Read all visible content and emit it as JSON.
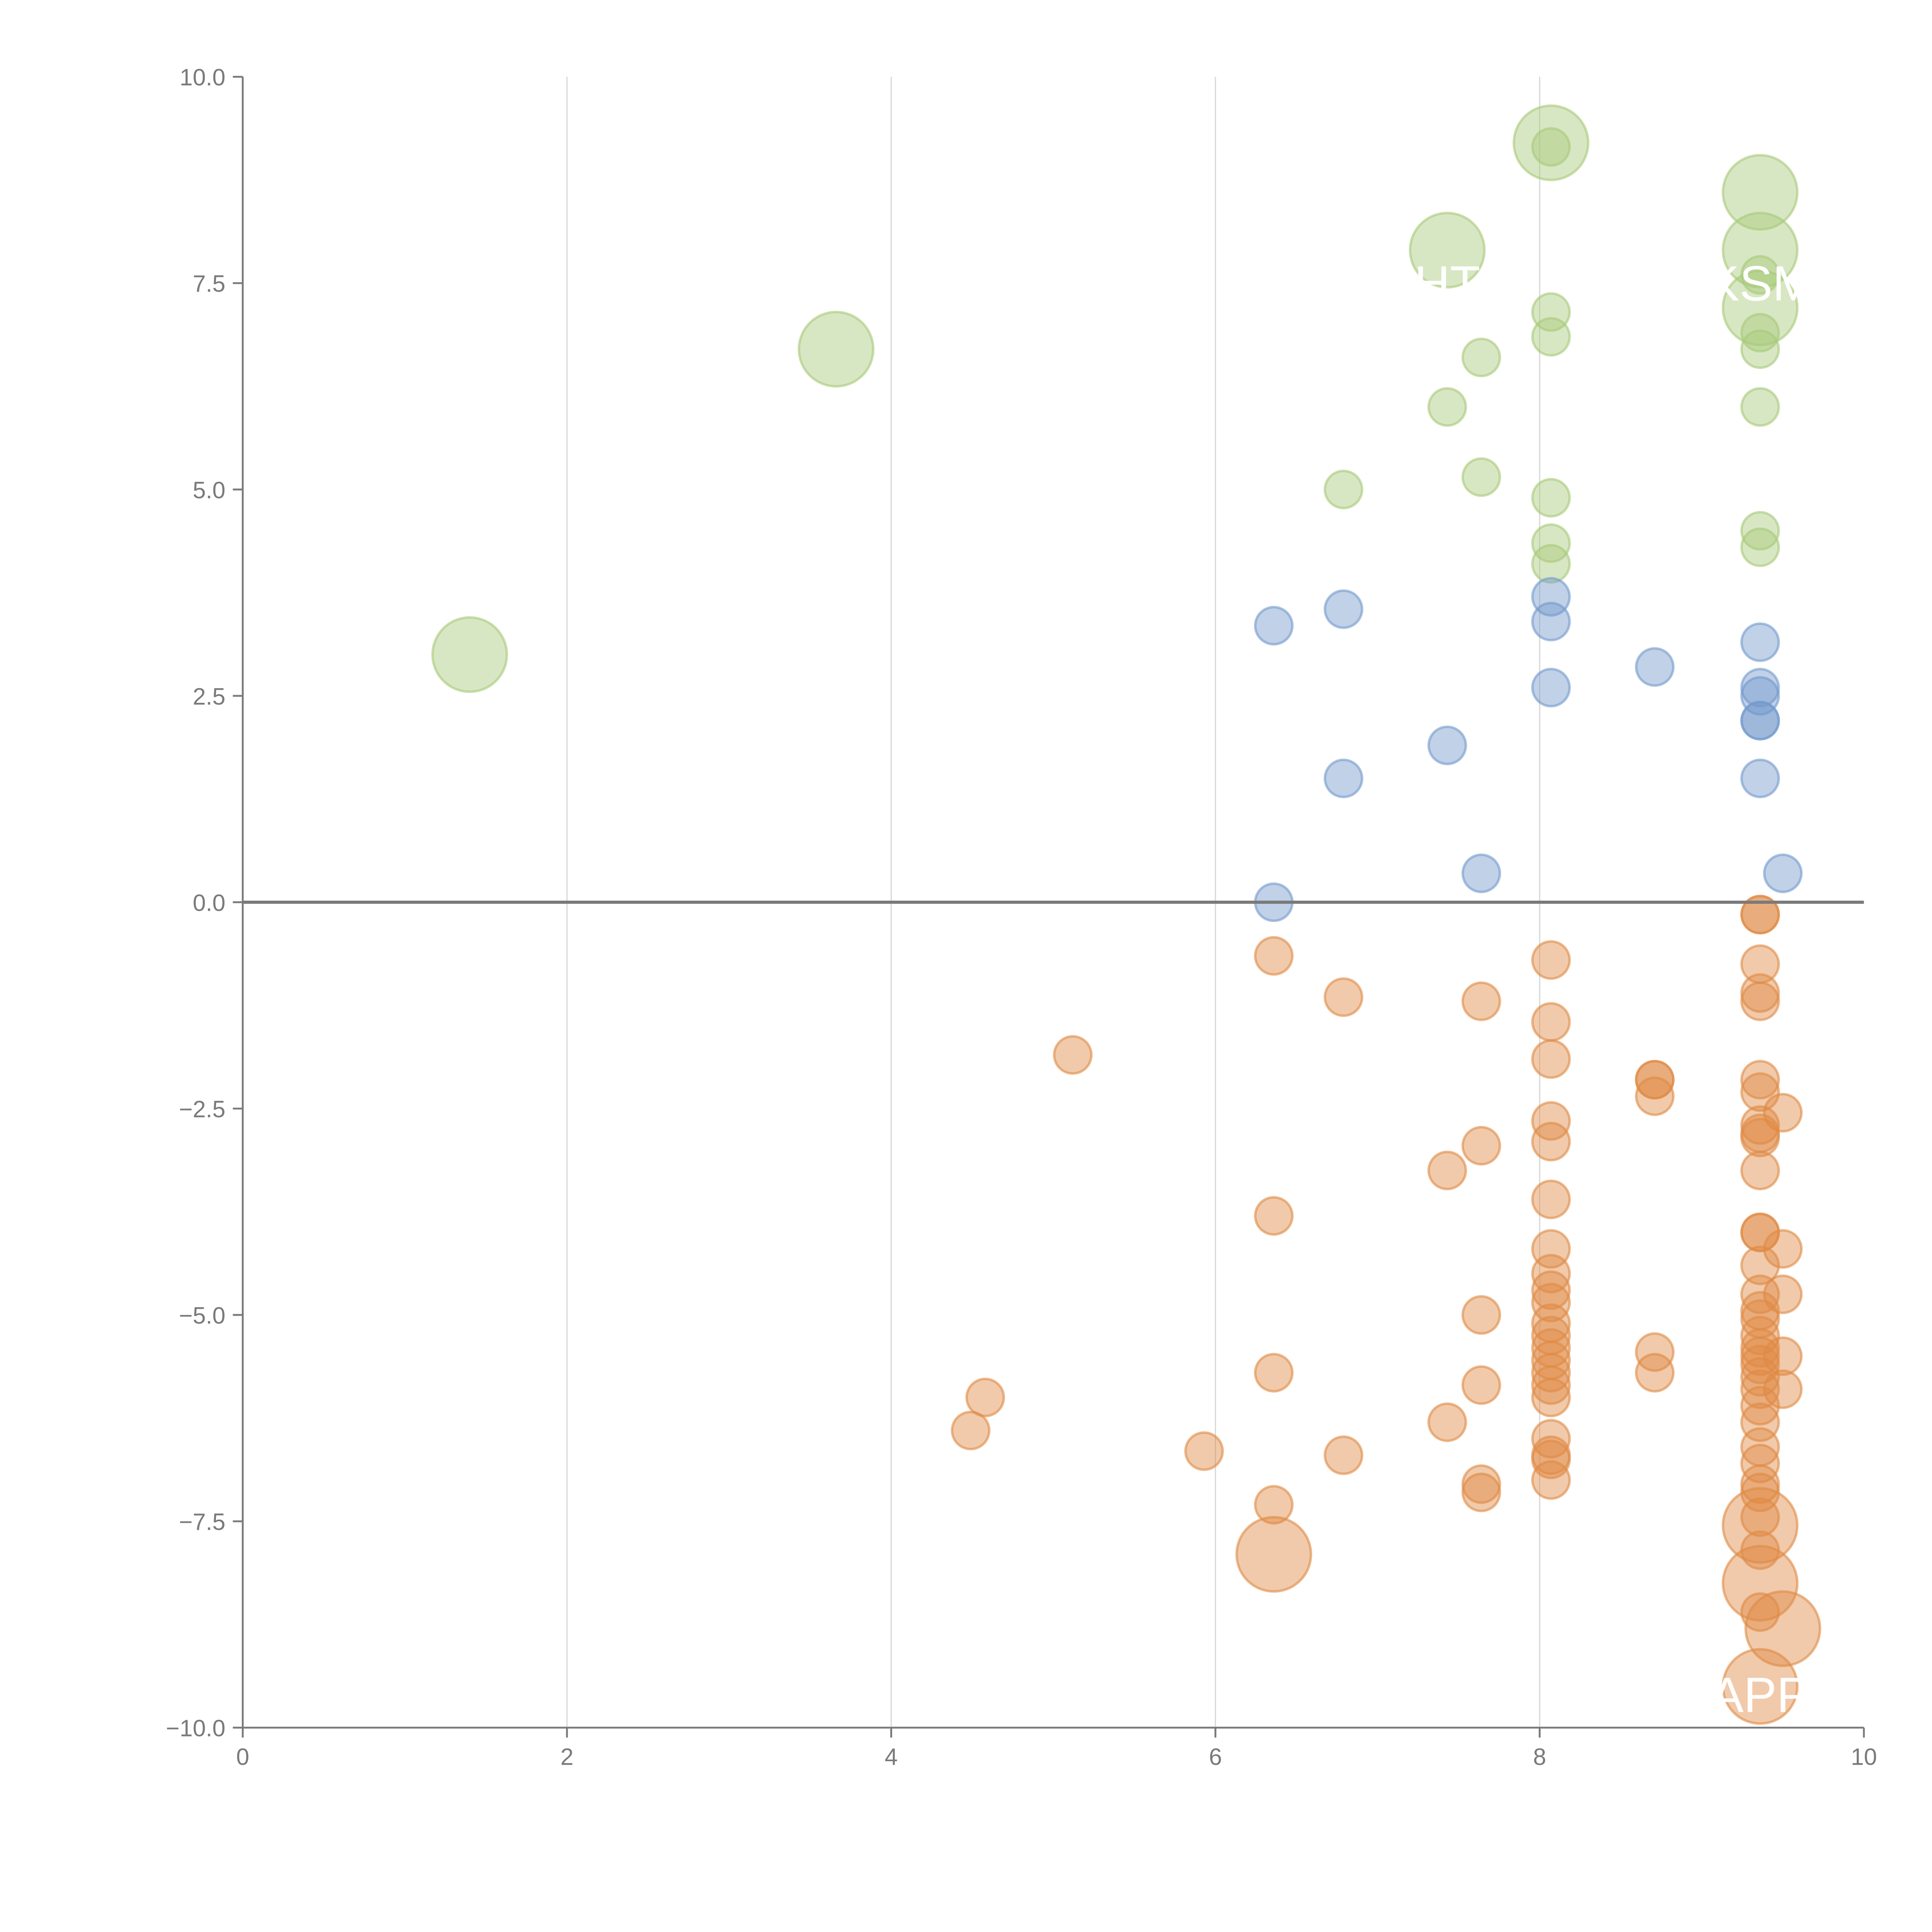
{
  "chart_data": {
    "type": "scatter",
    "title": "",
    "xlabel": "",
    "ylabel": "",
    "xlim": [
      0,
      10
    ],
    "ylim": [
      -10,
      10
    ],
    "grid": "vertical",
    "x_ticks": [
      "0",
      "2",
      "4",
      "6",
      "8",
      "10"
    ],
    "x_tick_values": [
      0,
      2,
      4,
      6,
      8,
      10
    ],
    "y_ticks": [
      "10.0",
      "7.5",
      "5.0",
      "2.5",
      "0.0",
      "−2.5",
      "−5.0",
      "−7.5",
      "−10.0"
    ],
    "y_tick_values": [
      10,
      7.5,
      5,
      2.5,
      0,
      -2.5,
      -5,
      -7.5,
      -10
    ],
    "colors": {
      "green": "#a9c97a",
      "blue": "#7399cc",
      "orange": "#e08a45",
      "axis": "#7a7a7a",
      "grid": "#d9d9d9"
    },
    "annotations": [
      {
        "text": "HT",
        "x": 7.43,
        "y": 7.5
      },
      {
        "text": "KSM",
        "x": 9.36,
        "y": 7.5
      },
      {
        "text": "APP",
        "x": 9.36,
        "y": -9.6
      }
    ],
    "series": [
      {
        "name": "green",
        "color": "#a9c97a",
        "points": [
          [
            1.4,
            3.0,
            2
          ],
          [
            3.66,
            6.7,
            2
          ],
          [
            7.43,
            7.9,
            2
          ],
          [
            8.07,
            9.2,
            2
          ],
          [
            8.07,
            9.15,
            1
          ],
          [
            9.36,
            8.6,
            2
          ],
          [
            9.36,
            7.9,
            2
          ],
          [
            9.36,
            7.2,
            2
          ],
          [
            9.36,
            7.6,
            1
          ],
          [
            9.36,
            6.9,
            1
          ],
          [
            9.36,
            6.7,
            1
          ],
          [
            9.36,
            6.0,
            1
          ],
          [
            8.07,
            7.15,
            1
          ],
          [
            8.07,
            6.85,
            1
          ],
          [
            7.64,
            6.6,
            1
          ],
          [
            7.43,
            6.0,
            1
          ],
          [
            6.79,
            5.0,
            1
          ],
          [
            7.64,
            5.15,
            1
          ],
          [
            8.07,
            4.9,
            1
          ],
          [
            8.07,
            4.35,
            1
          ],
          [
            8.07,
            4.1,
            1
          ],
          [
            9.36,
            4.5,
            1
          ],
          [
            9.36,
            4.3,
            1
          ]
        ]
      },
      {
        "name": "blue",
        "color": "#7399cc",
        "points": [
          [
            6.36,
            3.35,
            1
          ],
          [
            6.79,
            3.55,
            1
          ],
          [
            8.07,
            3.7,
            1
          ],
          [
            8.07,
            3.4,
            1
          ],
          [
            8.07,
            2.6,
            1
          ],
          [
            8.71,
            2.85,
            1
          ],
          [
            9.36,
            3.15,
            1
          ],
          [
            9.36,
            2.6,
            1
          ],
          [
            9.36,
            2.5,
            1
          ],
          [
            9.36,
            2.2,
            1
          ],
          [
            9.36,
            2.2,
            1
          ],
          [
            7.43,
            1.9,
            1
          ],
          [
            6.79,
            1.5,
            1
          ],
          [
            9.36,
            1.5,
            1
          ],
          [
            7.64,
            0.35,
            1
          ],
          [
            9.5,
            0.35,
            1
          ],
          [
            6.36,
            0.0,
            1
          ]
        ]
      },
      {
        "name": "orange",
        "color": "#e08a45",
        "points": [
          [
            9.36,
            -0.15,
            1
          ],
          [
            9.36,
            -0.15,
            1
          ],
          [
            6.36,
            -0.65,
            1
          ],
          [
            8.07,
            -0.7,
            1
          ],
          [
            9.36,
            -0.75,
            1
          ],
          [
            6.79,
            -1.15,
            1
          ],
          [
            7.64,
            -1.2,
            1
          ],
          [
            9.36,
            -1.1,
            1
          ],
          [
            9.36,
            -1.2,
            1
          ],
          [
            8.07,
            -1.45,
            1
          ],
          [
            5.12,
            -1.85,
            1
          ],
          [
            8.07,
            -1.9,
            1
          ],
          [
            8.71,
            -2.15,
            1
          ],
          [
            8.71,
            -2.15,
            1
          ],
          [
            9.36,
            -2.15,
            1
          ],
          [
            8.71,
            -2.35,
            1
          ],
          [
            9.36,
            -2.3,
            1
          ],
          [
            9.5,
            -2.55,
            1
          ],
          [
            8.07,
            -2.65,
            1
          ],
          [
            9.36,
            -2.7,
            1
          ],
          [
            9.36,
            -2.8,
            1
          ],
          [
            9.36,
            -2.85,
            1
          ],
          [
            8.07,
            -2.9,
            1
          ],
          [
            7.64,
            -2.95,
            1
          ],
          [
            7.43,
            -3.25,
            1
          ],
          [
            9.36,
            -3.25,
            1
          ],
          [
            8.07,
            -3.6,
            1
          ],
          [
            6.36,
            -3.8,
            1
          ],
          [
            9.36,
            -4.0,
            1
          ],
          [
            9.36,
            -4.0,
            1
          ],
          [
            8.07,
            -4.2,
            1
          ],
          [
            9.5,
            -4.2,
            1
          ],
          [
            9.36,
            -4.4,
            1
          ],
          [
            8.07,
            -4.5,
            1
          ],
          [
            8.07,
            -4.7,
            1
          ],
          [
            9.36,
            -4.75,
            1
          ],
          [
            9.5,
            -4.75,
            1
          ],
          [
            8.07,
            -4.85,
            1
          ],
          [
            9.36,
            -4.95,
            1
          ],
          [
            7.64,
            -5.0,
            1
          ],
          [
            9.36,
            -5.05,
            1
          ],
          [
            8.07,
            -5.1,
            1
          ],
          [
            8.07,
            -5.25,
            1
          ],
          [
            9.36,
            -5.25,
            1
          ],
          [
            8.07,
            -5.4,
            1
          ],
          [
            9.36,
            -5.4,
            1
          ],
          [
            8.71,
            -5.45,
            1
          ],
          [
            9.36,
            -5.5,
            1
          ],
          [
            9.5,
            -5.5,
            1
          ],
          [
            8.07,
            -5.55,
            1
          ],
          [
            9.36,
            -5.6,
            1
          ],
          [
            8.07,
            -5.7,
            1
          ],
          [
            6.36,
            -5.7,
            1
          ],
          [
            8.71,
            -5.7,
            1
          ],
          [
            9.36,
            -5.75,
            1
          ],
          [
            8.07,
            -5.85,
            1
          ],
          [
            7.64,
            -5.85,
            1
          ],
          [
            9.36,
            -5.9,
            1
          ],
          [
            9.5,
            -5.9,
            1
          ],
          [
            8.07,
            -6.0,
            1
          ],
          [
            4.58,
            -6.0,
            1
          ],
          [
            9.36,
            -6.1,
            1
          ],
          [
            9.36,
            -6.3,
            1
          ],
          [
            7.43,
            -6.3,
            1
          ],
          [
            4.49,
            -6.4,
            1
          ],
          [
            8.07,
            -6.5,
            1
          ],
          [
            9.36,
            -6.6,
            1
          ],
          [
            5.93,
            -6.65,
            1
          ],
          [
            6.79,
            -6.7,
            1
          ],
          [
            8.07,
            -6.7,
            1
          ],
          [
            8.07,
            -6.75,
            1
          ],
          [
            9.36,
            -6.8,
            1
          ],
          [
            8.07,
            -7.0,
            1
          ],
          [
            7.64,
            -7.05,
            1
          ],
          [
            7.64,
            -7.15,
            1
          ],
          [
            9.36,
            -7.05,
            1
          ],
          [
            9.36,
            -7.15,
            1
          ],
          [
            6.36,
            -7.3,
            1
          ],
          [
            9.36,
            -7.45,
            1
          ],
          [
            9.36,
            -7.55,
            2
          ],
          [
            9.36,
            -7.85,
            1
          ],
          [
            6.36,
            -7.9,
            2
          ],
          [
            9.36,
            -8.25,
            2
          ],
          [
            9.36,
            -8.6,
            1
          ],
          [
            9.5,
            -8.8,
            2
          ],
          [
            9.36,
            -9.5,
            2
          ]
        ]
      }
    ]
  }
}
